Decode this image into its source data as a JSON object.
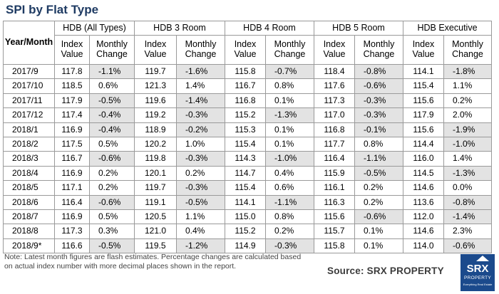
{
  "title": "SPI by Flat Type",
  "table": {
    "year_month_header": "Year/Month",
    "groups": [
      "HDB (All Types)",
      "HDB 3 Room",
      "HDB 4 Room",
      "HDB 5 Room",
      "HDB Executive"
    ],
    "sub_headers": [
      "Index Value",
      "Monthly Change"
    ],
    "rows": [
      {
        "month": "2017/9",
        "cells": [
          "117.8",
          "-1.1%",
          "119.7",
          "-1.6%",
          "115.8",
          "-0.7%",
          "118.4",
          "-0.8%",
          "114.1",
          "-1.8%"
        ]
      },
      {
        "month": "2017/10",
        "cells": [
          "118.5",
          "0.6%",
          "121.3",
          "1.4%",
          "116.7",
          "0.8%",
          "117.6",
          "-0.6%",
          "115.4",
          "1.1%"
        ]
      },
      {
        "month": "2017/11",
        "cells": [
          "117.9",
          "-0.5%",
          "119.6",
          "-1.4%",
          "116.8",
          "0.1%",
          "117.3",
          "-0.3%",
          "115.6",
          "0.2%"
        ]
      },
      {
        "month": "2017/12",
        "cells": [
          "117.4",
          "-0.4%",
          "119.2",
          "-0.3%",
          "115.2",
          "-1.3%",
          "117.0",
          "-0.3%",
          "117.9",
          "2.0%"
        ]
      },
      {
        "month": "2018/1",
        "cells": [
          "116.9",
          "-0.4%",
          "118.9",
          "-0.2%",
          "115.3",
          "0.1%",
          "116.8",
          "-0.1%",
          "115.6",
          "-1.9%"
        ]
      },
      {
        "month": "2018/2",
        "cells": [
          "117.5",
          "0.5%",
          "120.2",
          "1.0%",
          "115.4",
          "0.1%",
          "117.7",
          "0.8%",
          "114.4",
          "-1.0%"
        ]
      },
      {
        "month": "2018/3",
        "cells": [
          "116.7",
          "-0.6%",
          "119.8",
          "-0.3%",
          "114.3",
          "-1.0%",
          "116.4",
          "-1.1%",
          "116.0",
          "1.4%"
        ]
      },
      {
        "month": "2018/4",
        "cells": [
          "116.9",
          "0.2%",
          "120.1",
          "0.2%",
          "114.7",
          "0.4%",
          "115.9",
          "-0.5%",
          "114.5",
          "-1.3%"
        ]
      },
      {
        "month": "2018/5",
        "cells": [
          "117.1",
          "0.2%",
          "119.7",
          "-0.3%",
          "115.4",
          "0.6%",
          "116.1",
          "0.2%",
          "114.6",
          "0.0%"
        ]
      },
      {
        "month": "2018/6",
        "cells": [
          "116.4",
          "-0.6%",
          "119.1",
          "-0.5%",
          "114.1",
          "-1.1%",
          "116.3",
          "0.2%",
          "113.6",
          "-0.8%"
        ]
      },
      {
        "month": "2018/7",
        "cells": [
          "116.9",
          "0.5%",
          "120.5",
          "1.1%",
          "115.0",
          "0.8%",
          "115.6",
          "-0.6%",
          "112.0",
          "-1.4%"
        ]
      },
      {
        "month": "2018/8",
        "cells": [
          "117.3",
          "0.3%",
          "121.0",
          "0.4%",
          "115.2",
          "0.2%",
          "115.7",
          "0.1%",
          "114.6",
          "2.3%"
        ]
      },
      {
        "month": "2018/9*",
        "cells": [
          "116.6",
          "-0.5%",
          "119.5",
          "-1.2%",
          "114.9",
          "-0.3%",
          "115.8",
          "0.1%",
          "114.0",
          "-0.6%"
        ]
      }
    ]
  },
  "note": "Note: Latest month figures are flash estimates. Percentage changes are calculated based on actual index number with more decimal places shown in the report.",
  "source": "Source:  SRX PROPERTY",
  "logo": {
    "text": "SRX",
    "sub": "PROPERTY",
    "tagline": "Everything Real Estate"
  },
  "colors": {
    "title": "#1f3b63",
    "negative_highlight": "#e3e3e3",
    "logo_bg": "#1b4a8c"
  }
}
